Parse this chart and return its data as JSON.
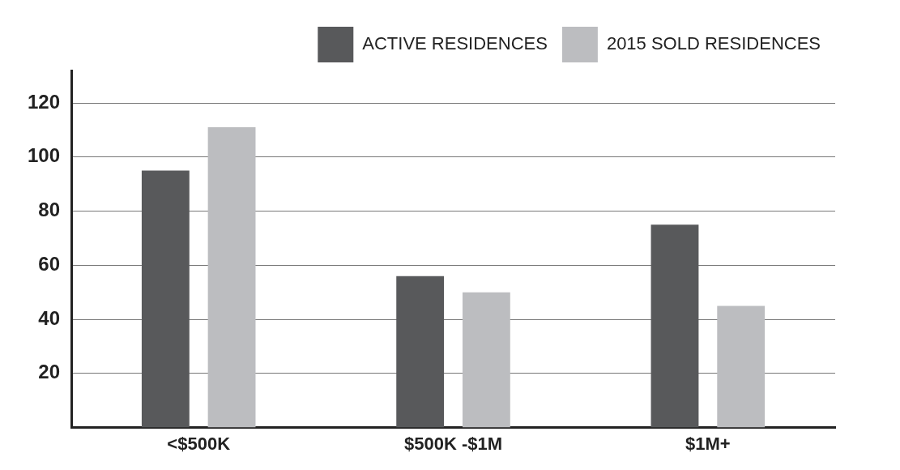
{
  "chart_data": {
    "type": "bar",
    "categories": [
      "<$500K",
      "$500K -$1M",
      "$1M+"
    ],
    "series": [
      {
        "name": "ACTIVE RESIDENCES",
        "color": "#58595b",
        "values": [
          95,
          56,
          75
        ]
      },
      {
        "name": "2015 SOLD RESIDENCES",
        "color": "#bcbdc0",
        "values": [
          111,
          50,
          45
        ]
      }
    ],
    "ylim": [
      0,
      132
    ],
    "yticks": [
      20,
      40,
      60,
      80,
      100,
      120
    ],
    "grid": "y",
    "legend": "top right"
  }
}
